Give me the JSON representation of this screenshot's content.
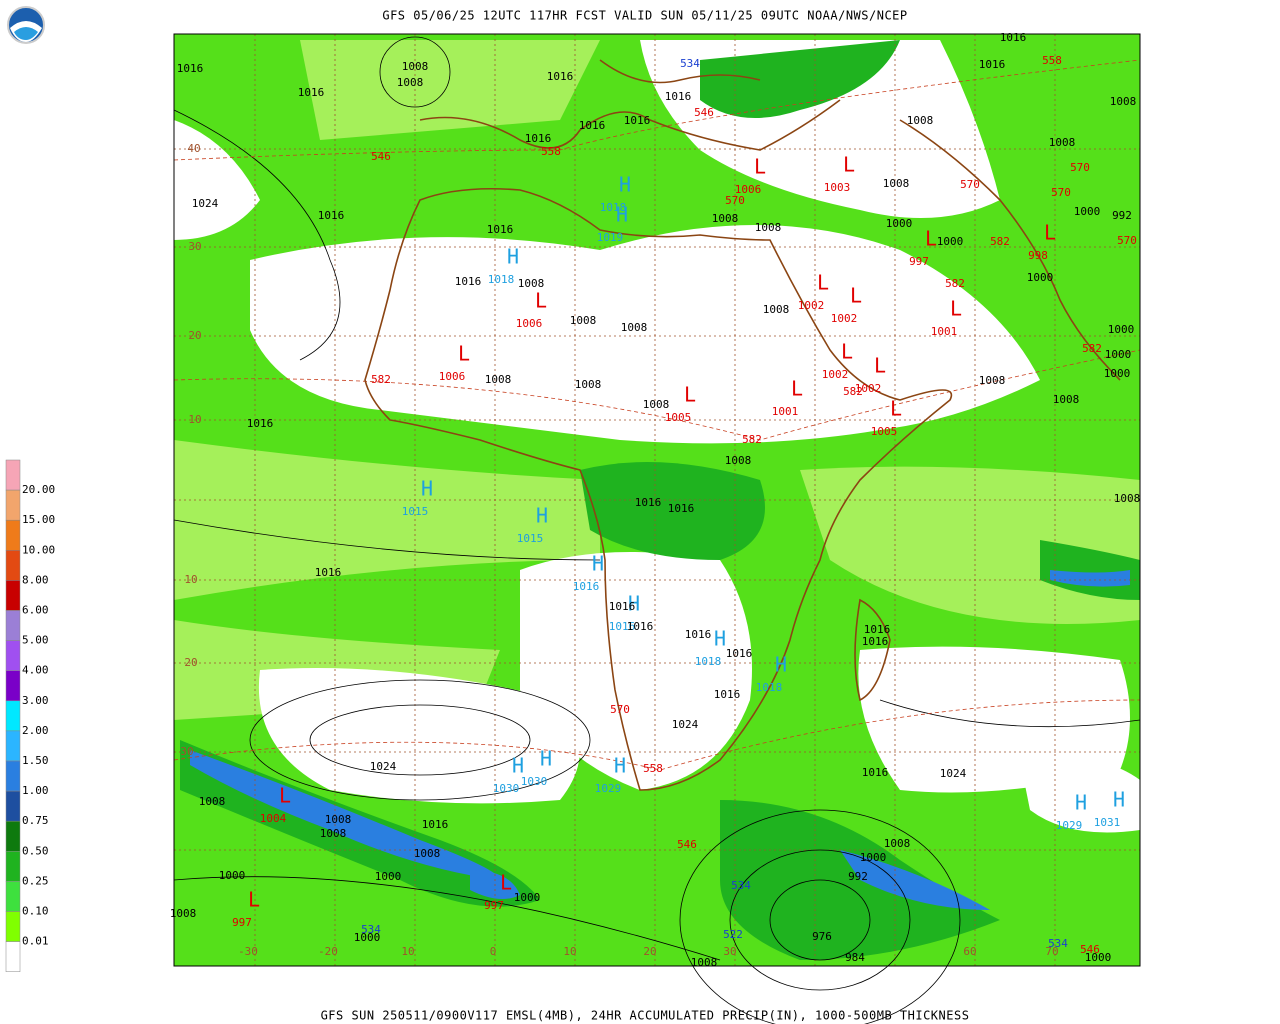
{
  "header": {
    "title": "GFS 05/06/25 12UTC 117HR FCST VALID SUN 05/11/25 09UTC NOAA/NWS/NCEP",
    "footer": "GFS SUN 250511/0900V117 EMSL(4MB), 24HR ACCUMULATED PRECIP(IN), 1000-500MB THICKNESS"
  },
  "legend": {
    "labels": [
      "20.00",
      "15.00",
      "10.00",
      "8.00",
      "6.00",
      "5.00",
      "4.00",
      "3.00",
      "2.00",
      "1.50",
      "1.00",
      "0.75",
      "0.50",
      "0.25",
      "0.10",
      "0.01"
    ],
    "colors": [
      "#f6a5b6",
      "#f2a56c",
      "#ef7b1a",
      "#e34a12",
      "#c80000",
      "#9b7fd6",
      "#a050f0",
      "#7a00c8",
      "#00e8ff",
      "#2bb5ff",
      "#2a7fe0",
      "#1e4fa0",
      "#0e7a0e",
      "#1fb31f",
      "#3ee03e",
      "#80ff00"
    ]
  },
  "latitude_labels": [
    "40",
    "30",
    "20",
    "10",
    "10",
    "20",
    "30"
  ],
  "longitude_labels": [
    "-30",
    "-20",
    "10",
    "0",
    "10",
    "20",
    "30",
    "60",
    "70"
  ],
  "centers": [
    {
      "symbol": "H",
      "value": "1018"
    },
    {
      "symbol": "H",
      "value": "1019"
    },
    {
      "symbol": "H",
      "value": "1018"
    },
    {
      "symbol": "H",
      "value": "1015"
    },
    {
      "symbol": "H",
      "value": "1015"
    },
    {
      "symbol": "H",
      "value": "1016"
    },
    {
      "symbol": "H",
      "value": "1016"
    },
    {
      "symbol": "H",
      "value": "1018"
    },
    {
      "symbol": "H",
      "value": "1018"
    },
    {
      "symbol": "H",
      "value": "1030"
    },
    {
      "symbol": "H",
      "value": "1030"
    },
    {
      "symbol": "H",
      "value": "1029"
    },
    {
      "symbol": "H",
      "value": "1029"
    },
    {
      "symbol": "H",
      "value": "1031"
    },
    {
      "symbol": "L",
      "value": "1006"
    },
    {
      "symbol": "L",
      "value": "1006"
    },
    {
      "symbol": "L",
      "value": "1005"
    },
    {
      "symbol": "L",
      "value": "1001"
    },
    {
      "symbol": "L",
      "value": "1002"
    },
    {
      "symbol": "L",
      "value": "1002"
    },
    {
      "symbol": "L",
      "value": "1002"
    },
    {
      "symbol": "L",
      "value": "1002"
    },
    {
      "symbol": "L",
      "value": "1005"
    },
    {
      "symbol": "L",
      "value": "1006"
    },
    {
      "symbol": "L",
      "value": "1003"
    },
    {
      "symbol": "L",
      "value": "1001"
    },
    {
      "symbol": "L",
      "value": "1004"
    },
    {
      "symbol": "L",
      "value": "997"
    },
    {
      "symbol": "L",
      "value": "997"
    },
    {
      "symbol": "L",
      "value": "998"
    },
    {
      "symbol": "L",
      "value": "997"
    }
  ],
  "isobar_labels": [
    "1008",
    "1008",
    "1016",
    "1016",
    "1016",
    "1016",
    "1016",
    "1016",
    "1016",
    "1008",
    "1016",
    "1016",
    "1008",
    "1008",
    "1024",
    "1016",
    "1016",
    "1016",
    "1008",
    "1008",
    "1008",
    "1008",
    "1000",
    "1000",
    "1000",
    "992",
    "1000",
    "1008",
    "1008",
    "1008",
    "1008",
    "1008",
    "1008",
    "1008",
    "1008",
    "1000",
    "1000",
    "1000",
    "1016",
    "1008",
    "1016",
    "1016",
    "1016",
    "1016",
    "1016",
    "1016",
    "1016",
    "1016",
    "1016",
    "1016",
    "1024",
    "1024",
    "1016",
    "1008",
    "1008",
    "1008",
    "1008",
    "1000",
    "1000",
    "1000",
    "1000",
    "1016",
    "1024",
    "1008",
    "1000",
    "992",
    "984",
    "976",
    "1008",
    "1000",
    "1008",
    "1008"
  ],
  "thickness_labels": [
    "546",
    "558",
    "546",
    "570",
    "570",
    "558",
    "570",
    "570",
    "570",
    "582",
    "582",
    "582",
    "582",
    "582",
    "582",
    "570",
    "558",
    "546",
    "546",
    "534",
    "534",
    "534",
    "534",
    "522"
  ]
}
